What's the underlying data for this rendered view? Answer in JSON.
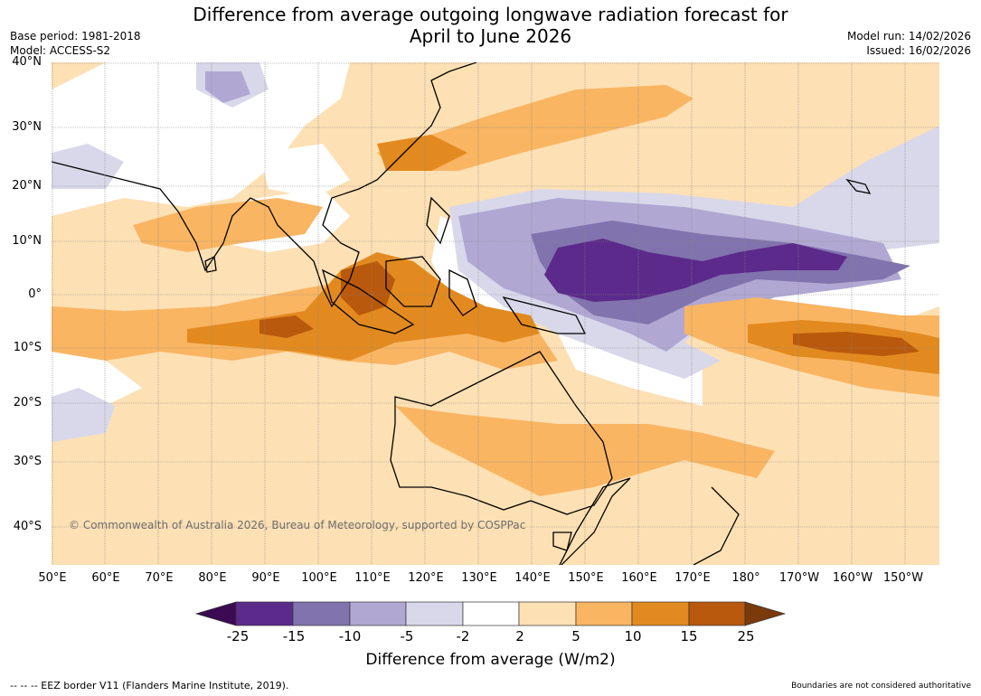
{
  "title": "Difference from average outgoing longwave radiation forecast for\nApril to June 2026",
  "base_period": "Base period: 1981-2018",
  "model": "Model: ACCESS-S2",
  "model_run": "Model run: 14/02/2026",
  "issued": "Issued: 16/02/2026",
  "copyright": "© Commonwealth of Australia 2026, Bureau of Meteorology, supported by COSPPac",
  "lat_labels": [
    "40°N",
    "30°N",
    "20°N",
    "10°N",
    "0°",
    "10°S",
    "20°S",
    "30°S",
    "40°S"
  ],
  "lon_labels": [
    "50°E",
    "60°E",
    "70°E",
    "80°E",
    "90°E",
    "100°E",
    "110°E",
    "120°E",
    "130°E",
    "140°E",
    "150°E",
    "160°E",
    "170°E",
    "180°",
    "170°W",
    "160°W",
    "150°W"
  ],
  "colorbar": {
    "ticks": [
      "-25",
      "-15",
      "-10",
      "-5",
      "-2",
      "2",
      "5",
      "10",
      "15",
      "25"
    ],
    "colors": [
      "#3b0a52",
      "#5b2a8a",
      "#8173ad",
      "#b0a8d2",
      "#d8d8ea",
      "#ffffff",
      "#fde0b4",
      "#f9b562",
      "#e28a1f",
      "#b9590d",
      "#7b3a0c"
    ],
    "label": "Difference from average (W/m2)"
  },
  "footer_left": "--  --  -- EEZ border V11 (Flanders Marine Institute, 2019).",
  "footer_right": "Boundaries are not considered authoritative"
}
